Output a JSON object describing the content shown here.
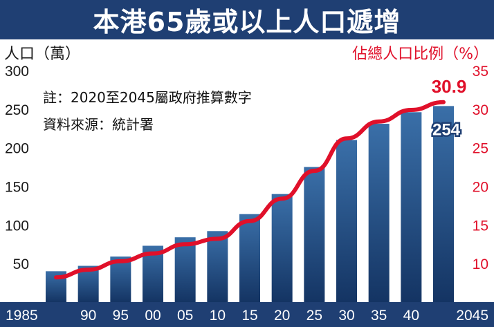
{
  "title": "本港65歲或以上人口遞增",
  "left_axis_title": "人口（萬）",
  "right_axis_title": "佔總人口比例（%）",
  "notes": {
    "note1": "註：2020至2045屬政府推算數字",
    "note2": "資料來源：統計署"
  },
  "colors": {
    "banner": "#1f3f73",
    "bar_light": "#3a6fa8",
    "bar_dark": "#143463",
    "line": "#e0102a",
    "x_axis_band": "#1f3f73"
  },
  "chart_data": {
    "type": "bar",
    "categories": [
      "1985",
      "90",
      "95",
      "00",
      "05",
      "10",
      "15",
      "20",
      "25",
      "30",
      "35",
      "40",
      "2045"
    ],
    "series": [
      {
        "type": "bar",
        "axis": "left",
        "values": [
          40,
          47,
          59,
          73,
          84,
          92,
          114,
          140,
          175,
          210,
          231,
          246,
          254
        ]
      },
      {
        "type": "line",
        "axis": "right",
        "values": [
          8.2,
          9.2,
          10.3,
          11.3,
          12.5,
          13.2,
          15.5,
          18.4,
          22.0,
          26.2,
          28.4,
          29.9,
          30.9
        ]
      }
    ],
    "left_axis": {
      "ylim": [
        0,
        300
      ],
      "ticks": [
        50,
        100,
        150,
        200,
        250,
        300
      ]
    },
    "right_axis": {
      "ylim": [
        5,
        35
      ],
      "ticks": [
        10,
        15,
        20,
        25,
        30,
        35
      ]
    },
    "callouts": {
      "last_bar_label": "254",
      "last_line_label": "30.9"
    },
    "grid": false
  }
}
